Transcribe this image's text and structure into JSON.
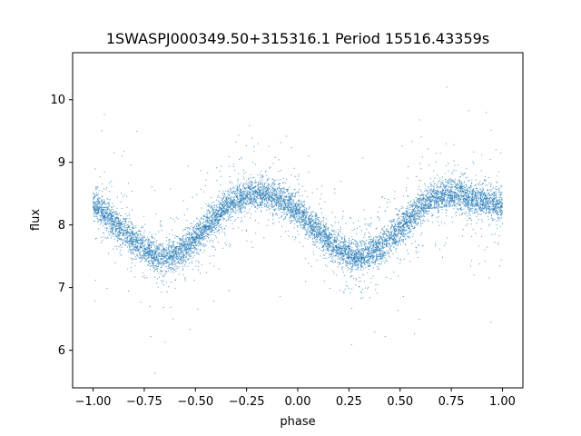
{
  "chart_data": {
    "type": "scatter",
    "title": "1SWASPJ000349.50+315316.1 Period 15516.43359s",
    "xlabel": "phase",
    "ylabel": "flux",
    "xlim": [
      -1.1,
      1.1
    ],
    "ylim": [
      5.4,
      10.75
    ],
    "x_ticks": [
      -1.0,
      -0.75,
      -0.5,
      -0.25,
      0.0,
      0.25,
      0.5,
      0.75,
      1.0
    ],
    "x_tick_labels": [
      "−1.00",
      "−0.75",
      "−0.50",
      "−0.25",
      "0.00",
      "0.25",
      "0.50",
      "0.75",
      "1.00"
    ],
    "y_ticks": [
      6,
      7,
      8,
      9,
      10
    ],
    "y_tick_labels": [
      "6",
      "7",
      "8",
      "9",
      "10"
    ],
    "grid": false,
    "marker_color": "#1f77b4",
    "series": [
      {
        "x": [
          -1.0,
          -0.95,
          -0.9,
          -0.85,
          -0.8,
          -0.75,
          -0.7,
          -0.65,
          -0.6,
          -0.55,
          -0.5,
          -0.45,
          -0.4,
          -0.35,
          -0.3,
          -0.25,
          -0.2,
          -0.15,
          -0.1,
          -0.05,
          0.0,
          0.05,
          0.1,
          0.15,
          0.2,
          0.25,
          0.3,
          0.35,
          0.4,
          0.45,
          0.5,
          0.55,
          0.6,
          0.65,
          0.7,
          0.75,
          0.8,
          0.85,
          0.9,
          0.95,
          1.0
        ],
        "y": [
          8.35,
          8.22,
          8.05,
          7.9,
          7.75,
          7.62,
          7.52,
          7.48,
          7.52,
          7.62,
          7.78,
          7.95,
          8.12,
          8.28,
          8.4,
          8.47,
          8.5,
          8.47,
          8.42,
          8.35,
          8.22,
          8.05,
          7.9,
          7.75,
          7.62,
          7.52,
          7.48,
          7.52,
          7.62,
          7.78,
          7.95,
          8.12,
          8.28,
          8.4,
          8.47,
          8.5,
          8.47,
          8.42,
          8.38,
          8.35,
          8.35
        ]
      }
    ]
  }
}
